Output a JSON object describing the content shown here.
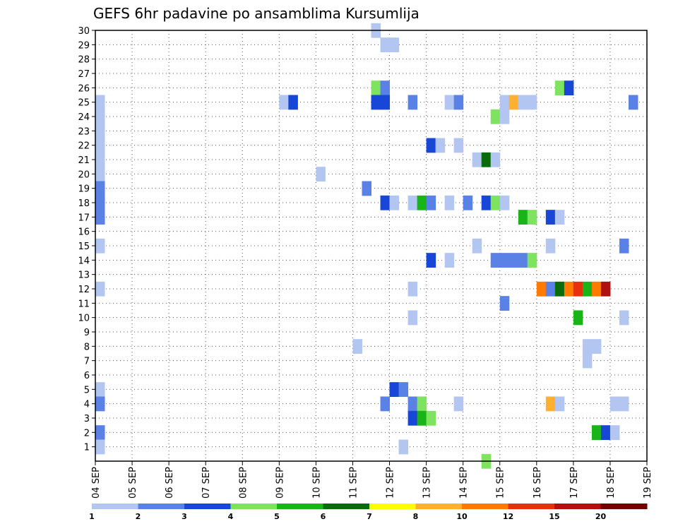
{
  "chart_data": {
    "type": "heatmap",
    "title": "GEFS 6hr padavine po ansamblima Kursumlija",
    "x_tick_labels": [
      "04 SEP",
      "05 SEP",
      "06 SEP",
      "07 SEP",
      "08 SEP",
      "09 SEP",
      "10 SEP",
      "11 SEP",
      "12 SEP",
      "13 SEP",
      "14 SEP",
      "15 SEP",
      "16 SEP",
      "17 SEP",
      "18 SEP",
      "19 SEP"
    ],
    "xlim": [
      0,
      15
    ],
    "y_tick_labels": [
      "1",
      "2",
      "3",
      "4",
      "5",
      "6",
      "7",
      "8",
      "9",
      "10",
      "11",
      "12",
      "13",
      "14",
      "15",
      "16",
      "17",
      "18",
      "19",
      "20",
      "21",
      "22",
      "23",
      "24",
      "25",
      "26",
      "27",
      "28",
      "29",
      "30"
    ],
    "ylim": [
      0,
      30
    ],
    "grid": true,
    "legend_labels": [
      "1",
      "2",
      "3",
      "4",
      "5",
      "6",
      "7",
      "8",
      "10",
      "12",
      "15",
      "20"
    ],
    "legend_colors": [
      "#b3c6f2",
      "#5a82e6",
      "#1846d6",
      "#7ee35e",
      "#18b418",
      "#0a6b0a",
      "#ffff00",
      "#ffb030",
      "#ff7a00",
      "#e83010",
      "#b01010",
      "#700000"
    ],
    "cells": [
      [
        0.0,
        25,
        0
      ],
      [
        0.0,
        24,
        0
      ],
      [
        0.0,
        23,
        0
      ],
      [
        0.0,
        22,
        0
      ],
      [
        0.0,
        21,
        0
      ],
      [
        0.0,
        20,
        0
      ],
      [
        0.0,
        19,
        1
      ],
      [
        0.0,
        18,
        1
      ],
      [
        0.0,
        17,
        1
      ],
      [
        0.0,
        15,
        0
      ],
      [
        0.0,
        12,
        0
      ],
      [
        0.0,
        5,
        0
      ],
      [
        0.0,
        4,
        1
      ],
      [
        0.0,
        2,
        1
      ],
      [
        0.0,
        1,
        0
      ],
      [
        5.0,
        25,
        0
      ],
      [
        5.25,
        25,
        2
      ],
      [
        6.0,
        20,
        0
      ],
      [
        7.0,
        8,
        0
      ],
      [
        7.25,
        19,
        1
      ],
      [
        7.5,
        30,
        0
      ],
      [
        7.5,
        26,
        3
      ],
      [
        7.75,
        26,
        1
      ],
      [
        7.5,
        25,
        2
      ],
      [
        7.75,
        25,
        2
      ],
      [
        7.75,
        29,
        0
      ],
      [
        8.0,
        29,
        0
      ],
      [
        7.75,
        18,
        2
      ],
      [
        8.0,
        18,
        0
      ],
      [
        7.75,
        4,
        1
      ],
      [
        8.0,
        5,
        2
      ],
      [
        8.25,
        5,
        1
      ],
      [
        8.25,
        1,
        0
      ],
      [
        8.5,
        25,
        1
      ],
      [
        8.5,
        18,
        0
      ],
      [
        8.5,
        12,
        0
      ],
      [
        8.5,
        10,
        0
      ],
      [
        8.5,
        4,
        1
      ],
      [
        8.5,
        3,
        2
      ],
      [
        8.75,
        18,
        4
      ],
      [
        8.75,
        4,
        3
      ],
      [
        8.75,
        3,
        4
      ],
      [
        9.0,
        18,
        1
      ],
      [
        9.0,
        3,
        3
      ],
      [
        9.0,
        22,
        2
      ],
      [
        9.0,
        14,
        2
      ],
      [
        9.25,
        22,
        0
      ],
      [
        9.5,
        18,
        0
      ],
      [
        9.5,
        14,
        0
      ],
      [
        9.5,
        25,
        0
      ],
      [
        9.75,
        25,
        1
      ],
      [
        9.75,
        22,
        0
      ],
      [
        9.75,
        4,
        0
      ],
      [
        10.0,
        18,
        1
      ],
      [
        10.25,
        21,
        0
      ],
      [
        10.5,
        21,
        5
      ],
      [
        10.75,
        21,
        0
      ],
      [
        10.25,
        15,
        0
      ],
      [
        10.5,
        18,
        2
      ],
      [
        10.5,
        0,
        3
      ],
      [
        10.75,
        24,
        3
      ],
      [
        10.75,
        18,
        3
      ],
      [
        10.75,
        14,
        1
      ],
      [
        11.0,
        25,
        0
      ],
      [
        11.0,
        24,
        0
      ],
      [
        11.0,
        18,
        0
      ],
      [
        11.0,
        11,
        1
      ],
      [
        11.0,
        14,
        1
      ],
      [
        11.25,
        25,
        7
      ],
      [
        11.25,
        14,
        1
      ],
      [
        11.5,
        25,
        0
      ],
      [
        11.75,
        25,
        0
      ],
      [
        11.5,
        14,
        1
      ],
      [
        11.5,
        17,
        4
      ],
      [
        11.75,
        17,
        3
      ],
      [
        11.75,
        14,
        3
      ],
      [
        12.0,
        12,
        8
      ],
      [
        12.25,
        12,
        1
      ],
      [
        12.25,
        15,
        0
      ],
      [
        12.25,
        17,
        2
      ],
      [
        12.5,
        17,
        0
      ],
      [
        12.25,
        4,
        7
      ],
      [
        12.5,
        4,
        0
      ],
      [
        12.5,
        26,
        3
      ],
      [
        12.75,
        26,
        2
      ],
      [
        12.5,
        12,
        5
      ],
      [
        12.75,
        12,
        8
      ],
      [
        13.0,
        12,
        9
      ],
      [
        13.0,
        10,
        4
      ],
      [
        13.25,
        8,
        0
      ],
      [
        13.5,
        8,
        0
      ],
      [
        13.25,
        7,
        0
      ],
      [
        13.25,
        12,
        4
      ],
      [
        13.5,
        12,
        8
      ],
      [
        13.75,
        12,
        10
      ],
      [
        13.5,
        2,
        4
      ],
      [
        13.75,
        2,
        2
      ],
      [
        14.0,
        2,
        0
      ],
      [
        14.0,
        4,
        0
      ],
      [
        14.25,
        4,
        0
      ],
      [
        14.25,
        15,
        1
      ],
      [
        14.25,
        10,
        0
      ],
      [
        14.5,
        25,
        1
      ]
    ]
  }
}
